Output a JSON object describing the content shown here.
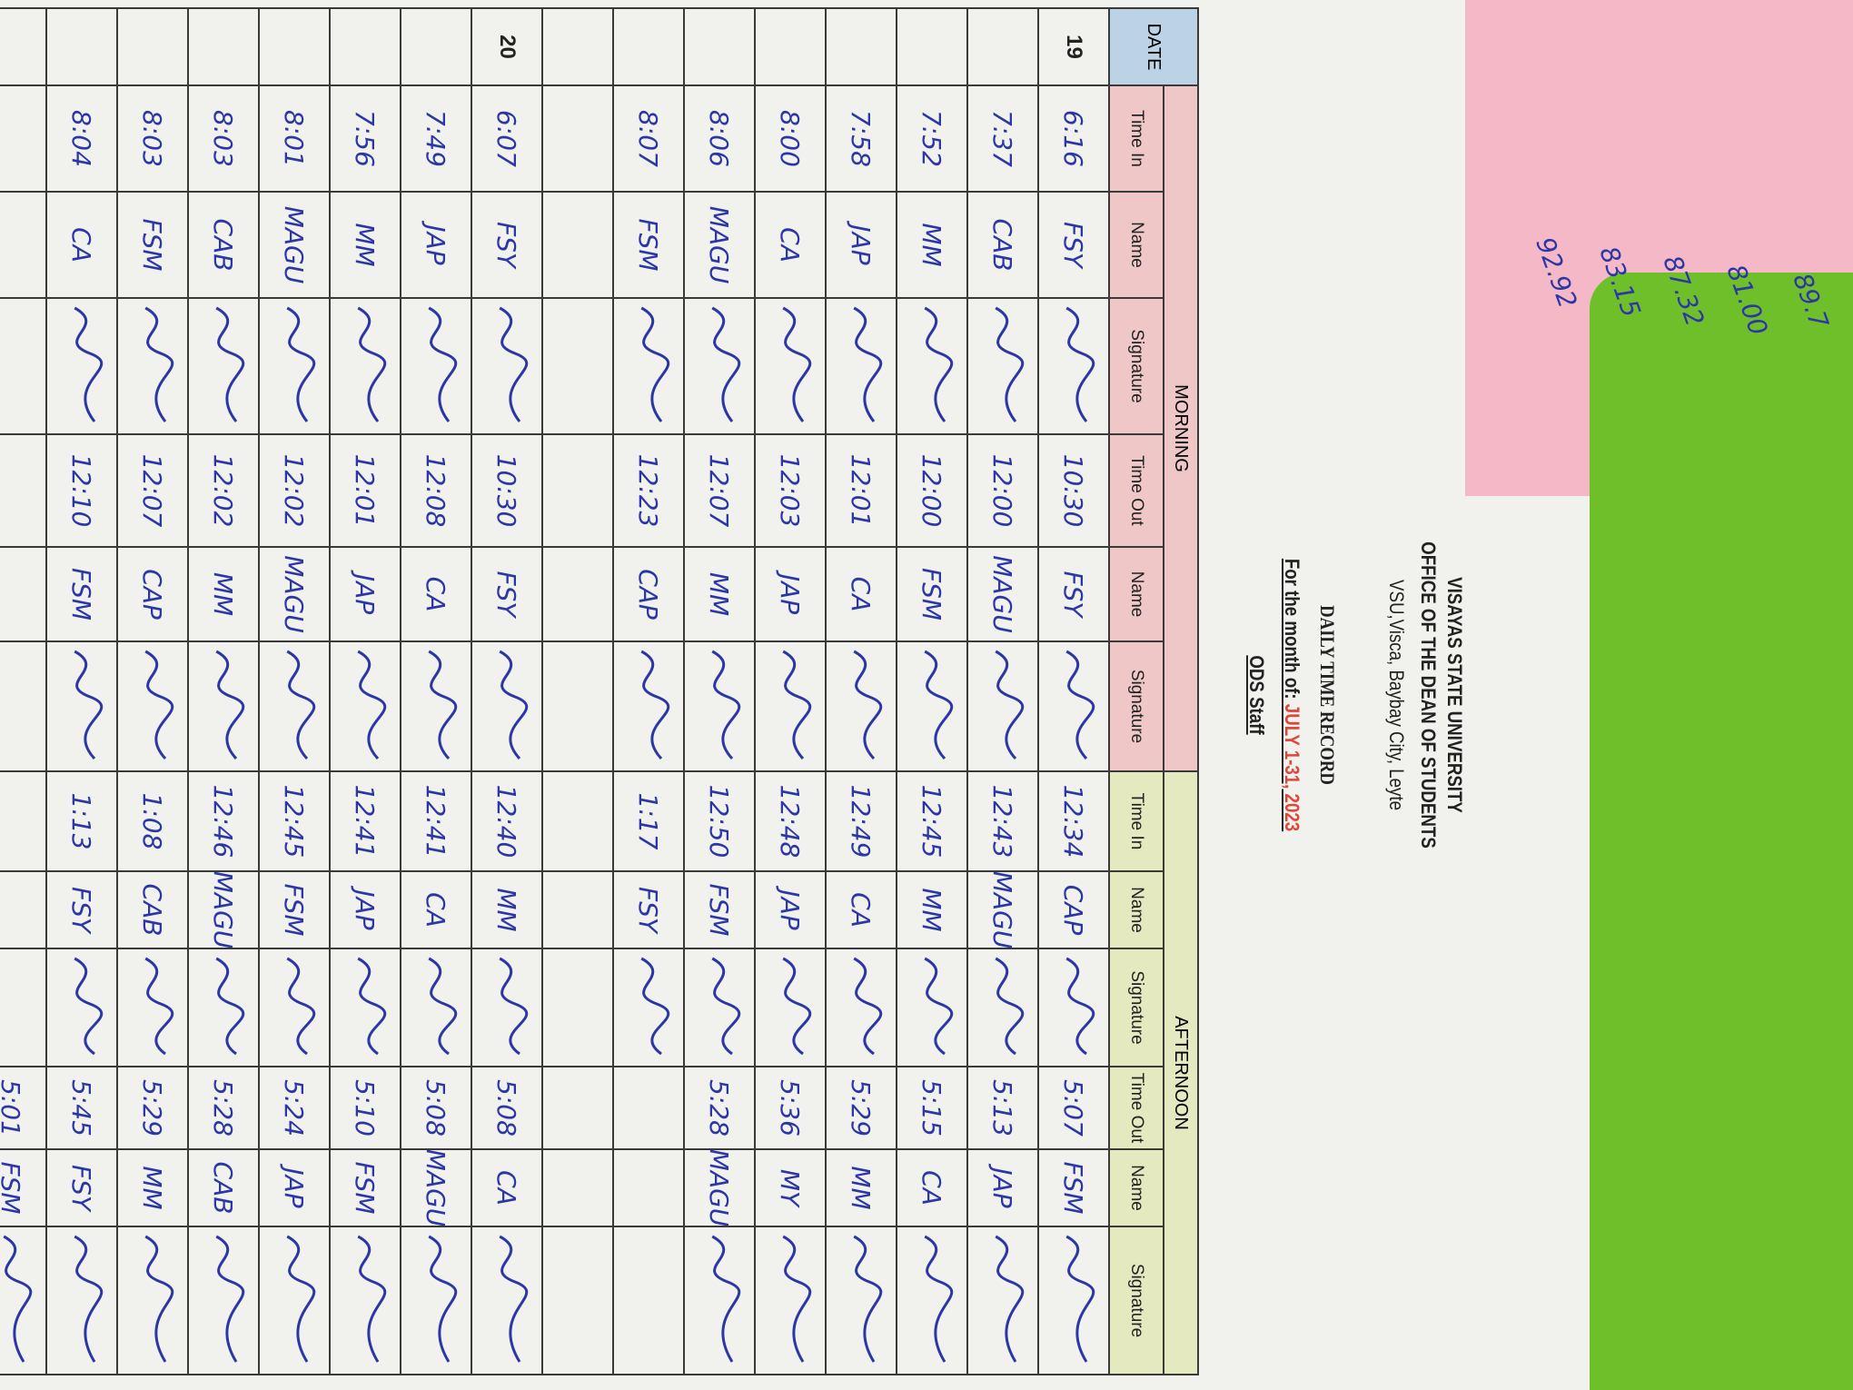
{
  "header": {
    "university": "VISAYAS STATE UNIVERSITY",
    "office": "OFFICE OF THE DEAN OF STUDENTS",
    "address": "VSU,Visca, Baybay City, Leyte",
    "title": "DAILY TIME RECORD",
    "month_label": "For the month of:",
    "month": "JULY 1-31, 2023",
    "staff": "ODS Staff"
  },
  "notes": [
    "89.7",
    "81.00",
    "87.32",
    "83.15",
    "92.92"
  ],
  "table": {
    "groups": [
      "MORNING",
      "AFTERNOON"
    ],
    "date_header": "DATE",
    "columns": [
      "Time In",
      "Name",
      "Signature",
      "Time Out",
      "Name",
      "Signature",
      "Time In",
      "Name",
      "Signature",
      "Time Out",
      "Name",
      "Signature"
    ],
    "rows": [
      {
        "date": "19",
        "entries": [
          "6:16",
          "FSY",
          "10:30",
          "FSY",
          "12:34",
          "CAP",
          "5:07",
          "FSM"
        ]
      },
      {
        "entries": [
          "7:37",
          "CAB",
          "12:00",
          "MAGU",
          "12:43",
          "MAGU",
          "5:13",
          "JAP"
        ]
      },
      {
        "entries": [
          "7:52",
          "MM",
          "12:00",
          "FSM",
          "12:45",
          "MM",
          "5:15",
          "CA"
        ]
      },
      {
        "entries": [
          "7:58",
          "JAP",
          "12:01",
          "CA",
          "12:49",
          "CA",
          "5:29",
          "MM"
        ]
      },
      {
        "entries": [
          "8:00",
          "CA",
          "12:03",
          "JAP",
          "12:48",
          "JAP",
          "5:36",
          "MY"
        ]
      },
      {
        "entries": [
          "8:06",
          "MAGU",
          "12:07",
          "MM",
          "12:50",
          "FSM",
          "5:28",
          "MAGU"
        ]
      },
      {
        "entries": [
          "8:07",
          "FSM",
          "12:23",
          "CAP",
          "1:17",
          "FSY",
          null,
          null
        ]
      },
      {
        "entries": [
          null,
          null,
          null,
          null,
          null,
          null,
          null,
          null
        ]
      },
      {
        "date": "20",
        "entries": [
          "6:07",
          "FSY",
          "10:30",
          "FSY",
          "12:40",
          "MM",
          "5:08",
          "CA"
        ]
      },
      {
        "entries": [
          "7:49",
          "JAP",
          "12:08",
          "CA",
          "12:41",
          "CA",
          "5:08",
          "MAGU"
        ]
      },
      {
        "entries": [
          "7:56",
          "MM",
          "12:01",
          "JAP",
          "12:41",
          "JAP",
          "5:10",
          "FSM"
        ]
      },
      {
        "entries": [
          "8:01",
          "MAGU",
          "12:02",
          "MAGU",
          "12:45",
          "FSM",
          "5:24",
          "JAP"
        ]
      },
      {
        "entries": [
          "8:03",
          "CAB",
          "12:02",
          "MM",
          "12:46",
          "MAGU",
          "5:28",
          "CAB"
        ]
      },
      {
        "entries": [
          "8:03",
          "FSM",
          "12:07",
          "CAP",
          "1:08",
          "CAB",
          "5:29",
          "MM"
        ]
      },
      {
        "entries": [
          "8:04",
          "CA",
          "12:10",
          "FSM",
          "1:13",
          "FSY",
          "5:45",
          "FSY"
        ]
      },
      {
        "entries": [
          null,
          null,
          null,
          null,
          null,
          null,
          "5:01",
          "FSM"
        ]
      }
    ]
  }
}
